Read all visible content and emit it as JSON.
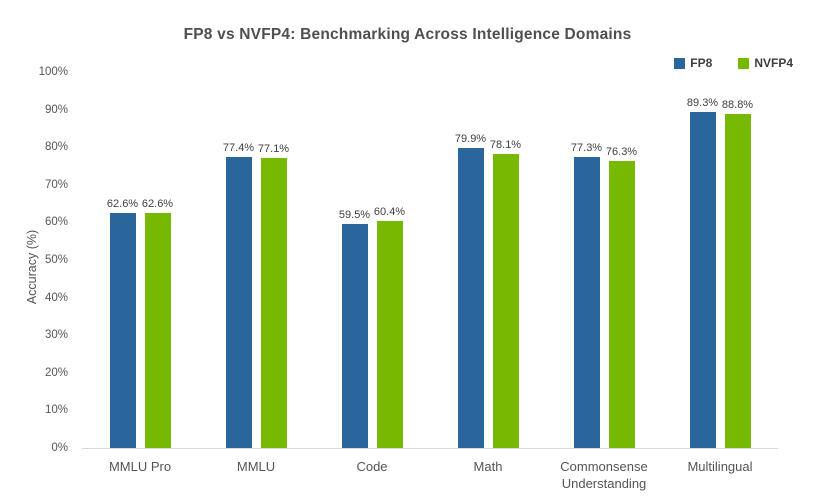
{
  "chart_data": {
    "type": "bar",
    "title": "FP8 vs NVFP4: Benchmarking Across Intelligence Domains",
    "categories": [
      "MMLU Pro",
      "MMLU",
      "Code",
      "Math",
      "Commonsense Understanding",
      "Multilingual"
    ],
    "series": [
      {
        "name": "FP8",
        "color": "#2A669C",
        "values": [
          62.6,
          77.4,
          59.5,
          79.9,
          77.3,
          89.3
        ],
        "labels": [
          "62.6%",
          "77.4%",
          "59.5%",
          "79.9%",
          "77.3%",
          "89.3%"
        ]
      },
      {
        "name": "NVFP4",
        "color": "#76B900",
        "values": [
          62.6,
          77.1,
          60.4,
          78.1,
          76.3,
          88.8
        ],
        "labels": [
          "62.6%",
          "77.1%",
          "60.4%",
          "78.1%",
          "76.3%",
          "88.8%"
        ]
      }
    ],
    "xlabel": "",
    "ylabel": "Accuracy (%)",
    "ylim": [
      0,
      100
    ],
    "grid": false,
    "legend_position": "top-right"
  },
  "y_axis": {
    "title": "Accuracy (%)",
    "ticks": [
      "0%",
      "10%",
      "20%",
      "30%",
      "40%",
      "50%",
      "60%",
      "70%",
      "80%",
      "90%",
      "100%"
    ]
  }
}
